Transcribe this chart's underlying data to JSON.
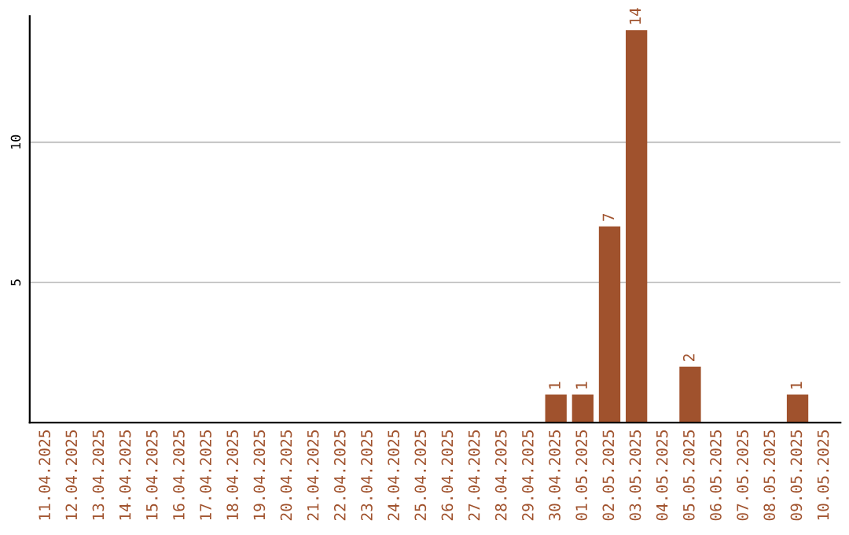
{
  "chart_data": {
    "type": "bar",
    "categories": [
      "11.04.2025",
      "12.04.2025",
      "13.04.2025",
      "14.04.2025",
      "15.04.2025",
      "16.04.2025",
      "17.04.2025",
      "18.04.2025",
      "19.04.2025",
      "20.04.2025",
      "21.04.2025",
      "22.04.2025",
      "23.04.2025",
      "24.04.2025",
      "25.04.2025",
      "26.04.2025",
      "27.04.2025",
      "28.04.2025",
      "29.04.2025",
      "30.04.2025",
      "01.05.2025",
      "02.05.2025",
      "03.05.2025",
      "04.05.2025",
      "05.05.2025",
      "06.05.2025",
      "07.05.2025",
      "08.05.2025",
      "09.05.2025",
      "10.05.2025"
    ],
    "values": [
      0,
      0,
      0,
      0,
      0,
      0,
      0,
      0,
      0,
      0,
      0,
      0,
      0,
      0,
      0,
      0,
      0,
      0,
      0,
      1,
      1,
      7,
      14,
      0,
      2,
      0,
      0,
      0,
      1,
      0
    ],
    "value_labels": [
      null,
      null,
      null,
      null,
      null,
      null,
      null,
      null,
      null,
      null,
      null,
      null,
      null,
      null,
      null,
      null,
      null,
      null,
      null,
      "1",
      "1",
      "7",
      "14",
      null,
      "2",
      null,
      null,
      null,
      "1",
      null
    ],
    "color": "#a0522d",
    "ylim": [
      0,
      14.5
    ],
    "yticks": [
      5,
      10
    ],
    "grid": "y",
    "legend": false
  }
}
